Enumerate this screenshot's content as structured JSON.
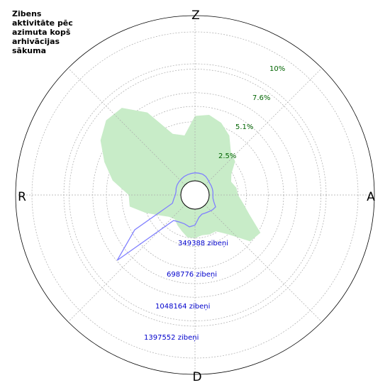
{
  "chart_data": {
    "type": "polar-area",
    "title_lines": [
      "Zibens",
      "aktivitāte pēc",
      "azimuta kopš",
      "arhivācijas",
      "sākuma"
    ],
    "compass": {
      "north": "Z",
      "east": "A",
      "south": "D",
      "west": "R"
    },
    "percent_ticks": [
      {
        "label": "2.5%",
        "value": 2.5
      },
      {
        "label": "5.1%",
        "value": 5.1
      },
      {
        "label": "7.6%",
        "value": 7.6
      },
      {
        "label": "10%",
        "value": 10.1
      }
    ],
    "count_ticks": [
      {
        "label": "349388 zibeņi",
        "value": 349388
      },
      {
        "label": "698776 zibeņi",
        "value": 698776
      },
      {
        "label": "1048164 zibeņi",
        "value": 1048164
      },
      {
        "label": "1397552 zibeņi",
        "value": 1397552
      }
    ],
    "grid": true,
    "colors": {
      "area_fill": "#c8ecc8",
      "count_line": "#8080ff",
      "grid": "#aaaaaa",
      "percent_text": "#006400",
      "count_text": "#0000cc"
    },
    "percent_series": {
      "azimuth_deg": [
        0,
        10,
        20,
        30,
        40,
        50,
        60,
        70,
        80,
        90,
        100,
        110,
        120,
        130,
        140,
        150,
        160,
        170,
        180,
        190,
        200,
        210,
        220,
        230,
        240,
        250,
        260,
        270,
        280,
        290,
        300,
        310,
        320,
        330,
        340,
        350
      ],
      "percent": [
        5.6,
        5.8,
        5.4,
        4.7,
        3.6,
        3.3,
        2.4,
        2.1,
        2.4,
        2.5,
        3.0,
        3.8,
        5.3,
        5.0,
        3.2,
        2.4,
        2.4,
        2.3,
        2.5,
        2.5,
        2.1,
        1.8,
        1.5,
        1.7,
        2.3,
        3.3,
        4.5,
        4.5,
        6.0,
        7.1,
        8.2,
        8.8,
        8.6,
        7.0,
        4.4,
        4.0
      ]
    },
    "count_series": {
      "azimuth_deg": [
        0,
        10,
        20,
        30,
        40,
        50,
        60,
        70,
        80,
        90,
        100,
        110,
        120,
        130,
        140,
        150,
        160,
        170,
        180,
        190,
        200,
        210,
        220,
        230,
        240,
        250,
        260,
        270,
        280,
        290,
        300,
        310,
        320,
        330,
        340,
        350
      ],
      "count": [
        75000,
        75000,
        75000,
        68000,
        55000,
        45000,
        42000,
        40000,
        38000,
        35000,
        38000,
        55000,
        90000,
        82000,
        70000,
        62000,
        58000,
        80000,
        150000,
        170000,
        155000,
        160000,
        180000,
        820000,
        520000,
        92000,
        68000,
        52000,
        48000,
        55000,
        60000,
        62000,
        65000,
        68000,
        70000,
        72000
      ]
    }
  }
}
